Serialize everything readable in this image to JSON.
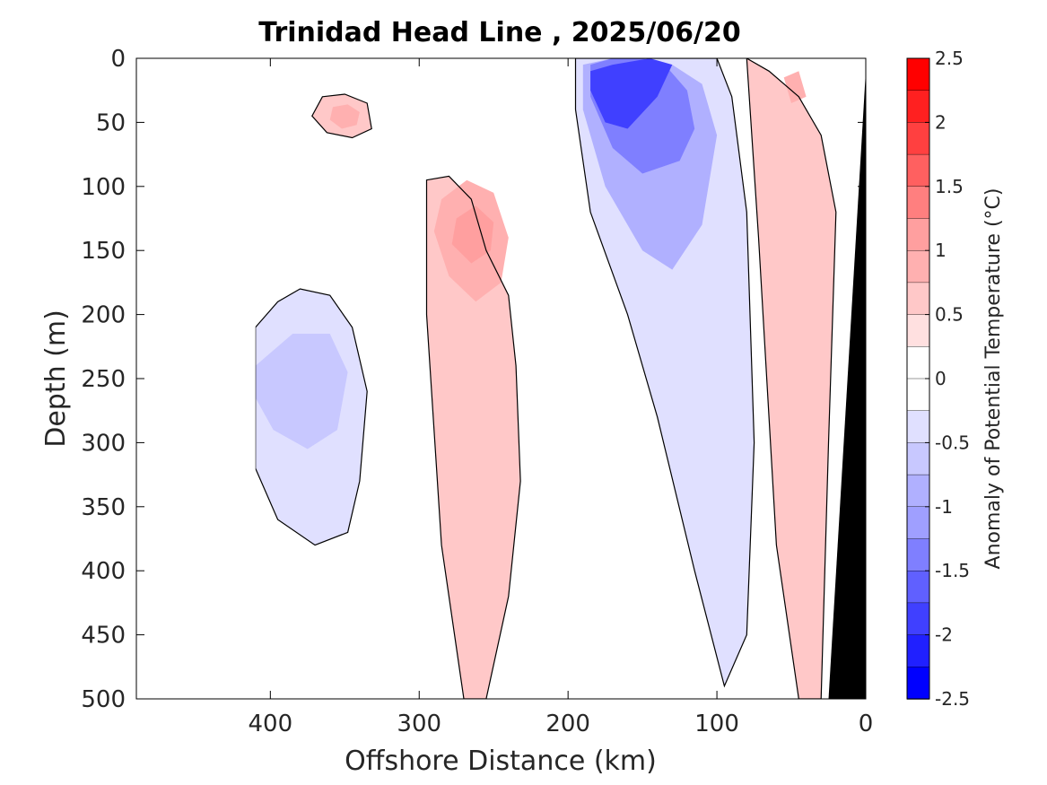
{
  "chart_data": {
    "type": "heatmap",
    "title": "Trinidad Head Line , 2025/06/20",
    "xlabel": "Offshore Distance (km)",
    "ylabel": "Depth (m)",
    "x_axis": {
      "range": [
        490,
        0
      ],
      "reversed": true,
      "ticks": [
        400,
        300,
        200,
        100,
        0
      ],
      "tick_labels": [
        "400",
        "300",
        "200",
        "100",
        "0"
      ]
    },
    "y_axis": {
      "range": [
        0,
        500
      ],
      "reversed": true,
      "ticks": [
        0,
        50,
        100,
        150,
        200,
        250,
        300,
        350,
        400,
        450,
        500
      ],
      "tick_labels": [
        "0",
        "50",
        "100",
        "150",
        "200",
        "250",
        "300",
        "350",
        "400",
        "450",
        "500"
      ]
    },
    "colorbar": {
      "label": "Anomaly of Potential Temperature (°C)",
      "range": [
        -2.5,
        2.5
      ],
      "ticks": [
        2.5,
        2,
        1.5,
        1,
        0.5,
        0,
        -0.5,
        -1,
        -1.5,
        -2,
        -2.5
      ],
      "tick_labels": [
        "2.5",
        "2",
        "1.5",
        "1",
        "0.5",
        "0",
        "-0.5",
        "-1",
        "-1.5",
        "-2",
        "-2.5"
      ],
      "level_step": 0.25,
      "colors_top_to_bottom": [
        "#ff0000",
        "#ff2020",
        "#ff4040",
        "#ff6060",
        "#ff7f7f",
        "#ff9f9f",
        "#ffb0b0",
        "#ffc8c8",
        "#ffe0e0",
        "#ffffff",
        "#ffffff",
        "#e0e0ff",
        "#c8c8ff",
        "#b0b0ff",
        "#9f9fff",
        "#7f7fff",
        "#6060ff",
        "#4040ff",
        "#2020ff",
        "#0000ff"
      ]
    },
    "grid": false,
    "data_coverage_km": [
      0,
      410
    ],
    "bathymetry_fill": "#000000",
    "bathymetry": {
      "x": [
        0,
        25,
        25
      ],
      "y": [
        10,
        500,
        500
      ]
    },
    "zero_contour_color": "#000000",
    "regions": [
      {
        "anomaly": -0.5,
        "x": [
          410,
          395,
          380,
          360,
          345,
          335,
          340,
          348,
          370,
          395,
          410
        ],
        "y": [
          210,
          190,
          180,
          185,
          210,
          260,
          330,
          370,
          380,
          360,
          320
        ]
      },
      {
        "anomaly": -0.75,
        "x": [
          410,
          385,
          360,
          348,
          355,
          375,
          398,
          410
        ],
        "y": [
          240,
          215,
          215,
          245,
          290,
          305,
          290,
          265
        ]
      },
      {
        "anomaly": 0.5,
        "x": [
          295,
          280,
          265,
          255,
          240,
          235,
          232,
          240,
          255,
          270,
          285,
          295
        ],
        "y": [
          95,
          92,
          110,
          150,
          185,
          240,
          330,
          420,
          500,
          500,
          380,
          200
        ]
      },
      {
        "anomaly": 0.75,
        "x": [
          285,
          268,
          250,
          240,
          245,
          262,
          280,
          290
        ],
        "y": [
          110,
          95,
          105,
          140,
          175,
          190,
          170,
          135
        ]
      },
      {
        "anomaly": 1.0,
        "x": [
          275,
          262,
          250,
          252,
          265,
          278
        ],
        "y": [
          125,
          115,
          128,
          150,
          160,
          145
        ]
      },
      {
        "anomaly": 0.5,
        "x": [
          365,
          350,
          335,
          332,
          345,
          362,
          372
        ],
        "y": [
          30,
          28,
          35,
          55,
          62,
          58,
          45
        ]
      },
      {
        "anomaly": 0.75,
        "x": [
          358,
          348,
          340,
          342,
          352,
          360
        ],
        "y": [
          38,
          36,
          42,
          52,
          55,
          48
        ]
      },
      {
        "anomaly": -0.5,
        "x": [
          195,
          175,
          150,
          120,
          100,
          90,
          80,
          75,
          80,
          95,
          115,
          140,
          160,
          185,
          195
        ],
        "y": [
          0,
          0,
          0,
          0,
          0,
          30,
          120,
          300,
          450,
          490,
          400,
          280,
          200,
          120,
          40
        ]
      },
      {
        "anomaly": -1.0,
        "x": [
          190,
          170,
          150,
          130,
          110,
          100,
          110,
          130,
          150,
          175,
          190
        ],
        "y": [
          5,
          0,
          0,
          5,
          20,
          60,
          130,
          165,
          150,
          100,
          40
        ]
      },
      {
        "anomaly": -1.5,
        "x": [
          185,
          170,
          150,
          135,
          120,
          115,
          125,
          150,
          170,
          185
        ],
        "y": [
          5,
          0,
          0,
          5,
          25,
          55,
          80,
          90,
          70,
          30
        ]
      },
      {
        "anomaly": -2.0,
        "x": [
          185,
          170,
          145,
          130,
          140,
          160,
          175,
          185
        ],
        "y": [
          10,
          5,
          0,
          5,
          30,
          55,
          50,
          25
        ]
      },
      {
        "anomaly": 0.5,
        "x": [
          80,
          65,
          45,
          30,
          20,
          25,
          30,
          45,
          60,
          72
        ],
        "y": [
          0,
          10,
          30,
          60,
          120,
          300,
          500,
          500,
          380,
          140
        ]
      },
      {
        "anomaly": 0.75,
        "x": [
          55,
          45,
          40,
          50
        ],
        "y": [
          15,
          10,
          30,
          35
        ]
      }
    ]
  }
}
